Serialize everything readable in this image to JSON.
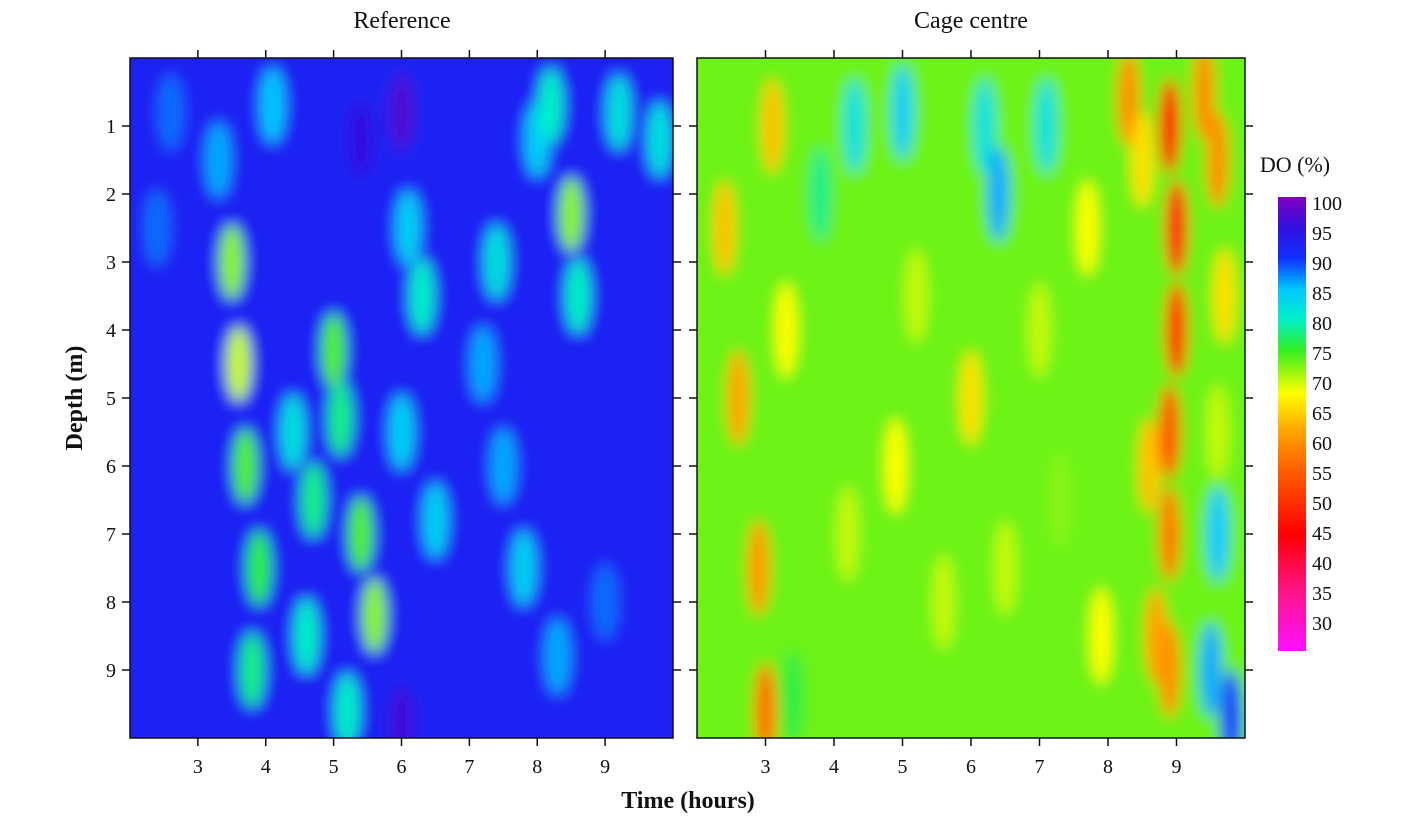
{
  "chart_data": {
    "type": "heatmap",
    "ylabel": "Depth (m)",
    "xlabel": "Time (hours)",
    "colorbar": {
      "title": "DO (%)",
      "ticks": [
        100,
        95,
        90,
        85,
        80,
        75,
        70,
        65,
        60,
        55,
        50,
        45,
        40,
        35,
        30
      ],
      "range": [
        26,
        100
      ],
      "stops": [
        {
          "value": 26,
          "color": "#ff10ff"
        },
        {
          "value": 35,
          "color": "#ff1493"
        },
        {
          "value": 45,
          "color": "#ff0000"
        },
        {
          "value": 55,
          "color": "#ff5a00"
        },
        {
          "value": 62,
          "color": "#ffa500"
        },
        {
          "value": 68,
          "color": "#ffff00"
        },
        {
          "value": 75,
          "color": "#33ee22"
        },
        {
          "value": 80,
          "color": "#00f0c8"
        },
        {
          "value": 85,
          "color": "#00c8ff"
        },
        {
          "value": 90,
          "color": "#1030ff"
        },
        {
          "value": 95,
          "color": "#3010e0"
        },
        {
          "value": 100,
          "color": "#8000c0"
        }
      ]
    },
    "yticks": [
      1,
      2,
      3,
      4,
      5,
      6,
      7,
      8,
      9
    ],
    "xticks": [
      3,
      4,
      5,
      6,
      7,
      8,
      9
    ],
    "xlim": [
      2,
      10
    ],
    "ylim": [
      0,
      10
    ],
    "panels": [
      {
        "title": "Reference",
        "blob_sigma": [
          0.18,
          0.55
        ],
        "background": 92,
        "anomalies": [
          {
            "t": 3.5,
            "d": 3.0,
            "v": 72
          },
          {
            "t": 3.6,
            "d": 4.5,
            "v": 70
          },
          {
            "t": 3.7,
            "d": 6.0,
            "v": 74
          },
          {
            "t": 3.9,
            "d": 7.5,
            "v": 76
          },
          {
            "t": 3.8,
            "d": 9.0,
            "v": 78
          },
          {
            "t": 3.3,
            "d": 1.5,
            "v": 86
          },
          {
            "t": 4.1,
            "d": 0.7,
            "v": 85
          },
          {
            "t": 4.4,
            "d": 5.5,
            "v": 82
          },
          {
            "t": 4.7,
            "d": 6.5,
            "v": 78
          },
          {
            "t": 4.6,
            "d": 8.5,
            "v": 80
          },
          {
            "t": 5.0,
            "d": 4.3,
            "v": 74
          },
          {
            "t": 5.1,
            "d": 5.3,
            "v": 78
          },
          {
            "t": 5.4,
            "d": 7.0,
            "v": 74
          },
          {
            "t": 5.6,
            "d": 8.2,
            "v": 72
          },
          {
            "t": 5.2,
            "d": 9.6,
            "v": 80
          },
          {
            "t": 6.3,
            "d": 3.5,
            "v": 80
          },
          {
            "t": 6.1,
            "d": 2.5,
            "v": 84
          },
          {
            "t": 6.0,
            "d": 5.5,
            "v": 84
          },
          {
            "t": 6.5,
            "d": 6.8,
            "v": 84
          },
          {
            "t": 7.2,
            "d": 4.5,
            "v": 86
          },
          {
            "t": 7.5,
            "d": 6.0,
            "v": 86
          },
          {
            "t": 7.8,
            "d": 7.5,
            "v": 84
          },
          {
            "t": 7.4,
            "d": 3.0,
            "v": 82
          },
          {
            "t": 8.0,
            "d": 1.2,
            "v": 84
          },
          {
            "t": 8.2,
            "d": 0.7,
            "v": 80
          },
          {
            "t": 8.5,
            "d": 2.3,
            "v": 72
          },
          {
            "t": 8.6,
            "d": 3.5,
            "v": 80
          },
          {
            "t": 9.2,
            "d": 0.8,
            "v": 82
          },
          {
            "t": 9.8,
            "d": 1.2,
            "v": 82
          },
          {
            "t": 8.3,
            "d": 8.8,
            "v": 86
          },
          {
            "t": 2.4,
            "d": 2.5,
            "v": 88
          },
          {
            "t": 2.6,
            "d": 0.8,
            "v": 88
          },
          {
            "t": 6.0,
            "d": 0.8,
            "v": 97
          },
          {
            "t": 5.4,
            "d": 1.2,
            "v": 95
          },
          {
            "t": 6.0,
            "d": 9.8,
            "v": 96
          },
          {
            "t": 9.0,
            "d": 8.0,
            "v": 88
          }
        ]
      },
      {
        "title": "Cage centre",
        "blob_sigma": [
          0.16,
          0.7
        ],
        "background": 73,
        "anomalies": [
          {
            "t": 2.4,
            "d": 2.5,
            "v": 64
          },
          {
            "t": 2.6,
            "d": 5.0,
            "v": 62
          },
          {
            "t": 2.9,
            "d": 7.5,
            "v": 61
          },
          {
            "t": 3.0,
            "d": 9.6,
            "v": 57
          },
          {
            "t": 3.1,
            "d": 1.0,
            "v": 64
          },
          {
            "t": 3.3,
            "d": 4.0,
            "v": 68
          },
          {
            "t": 3.8,
            "d": 2.0,
            "v": 78
          },
          {
            "t": 4.2,
            "d": 7.0,
            "v": 70
          },
          {
            "t": 4.3,
            "d": 1.0,
            "v": 82
          },
          {
            "t": 4.9,
            "d": 6.0,
            "v": 68
          },
          {
            "t": 5.0,
            "d": 0.8,
            "v": 84
          },
          {
            "t": 5.2,
            "d": 3.5,
            "v": 70
          },
          {
            "t": 5.6,
            "d": 8.0,
            "v": 70
          },
          {
            "t": 6.2,
            "d": 1.0,
            "v": 82
          },
          {
            "t": 6.4,
            "d": 2.0,
            "v": 86
          },
          {
            "t": 6.0,
            "d": 5.0,
            "v": 66
          },
          {
            "t": 6.5,
            "d": 7.5,
            "v": 70
          },
          {
            "t": 7.1,
            "d": 1.0,
            "v": 82
          },
          {
            "t": 7.0,
            "d": 4.0,
            "v": 70
          },
          {
            "t": 7.3,
            "d": 6.5,
            "v": 72
          },
          {
            "t": 7.7,
            "d": 2.5,
            "v": 68
          },
          {
            "t": 7.9,
            "d": 8.5,
            "v": 68
          },
          {
            "t": 8.3,
            "d": 0.6,
            "v": 60
          },
          {
            "t": 8.5,
            "d": 1.5,
            "v": 66
          },
          {
            "t": 8.6,
            "d": 6.0,
            "v": 64
          },
          {
            "t": 8.7,
            "d": 8.5,
            "v": 62
          },
          {
            "t": 8.9,
            "d": 1.0,
            "v": 46
          },
          {
            "t": 9.0,
            "d": 2.5,
            "v": 44
          },
          {
            "t": 9.0,
            "d": 4.0,
            "v": 50
          },
          {
            "t": 8.9,
            "d": 5.5,
            "v": 54
          },
          {
            "t": 8.9,
            "d": 7.0,
            "v": 58
          },
          {
            "t": 8.9,
            "d": 9.0,
            "v": 60
          },
          {
            "t": 9.4,
            "d": 0.5,
            "v": 60
          },
          {
            "t": 9.6,
            "d": 1.5,
            "v": 60
          },
          {
            "t": 9.7,
            "d": 3.5,
            "v": 66
          },
          {
            "t": 9.6,
            "d": 5.5,
            "v": 70
          },
          {
            "t": 9.6,
            "d": 7.0,
            "v": 85
          },
          {
            "t": 9.5,
            "d": 9.0,
            "v": 86
          },
          {
            "t": 9.8,
            "d": 9.7,
            "v": 90
          },
          {
            "t": 3.4,
            "d": 9.4,
            "v": 76
          }
        ]
      }
    ]
  }
}
